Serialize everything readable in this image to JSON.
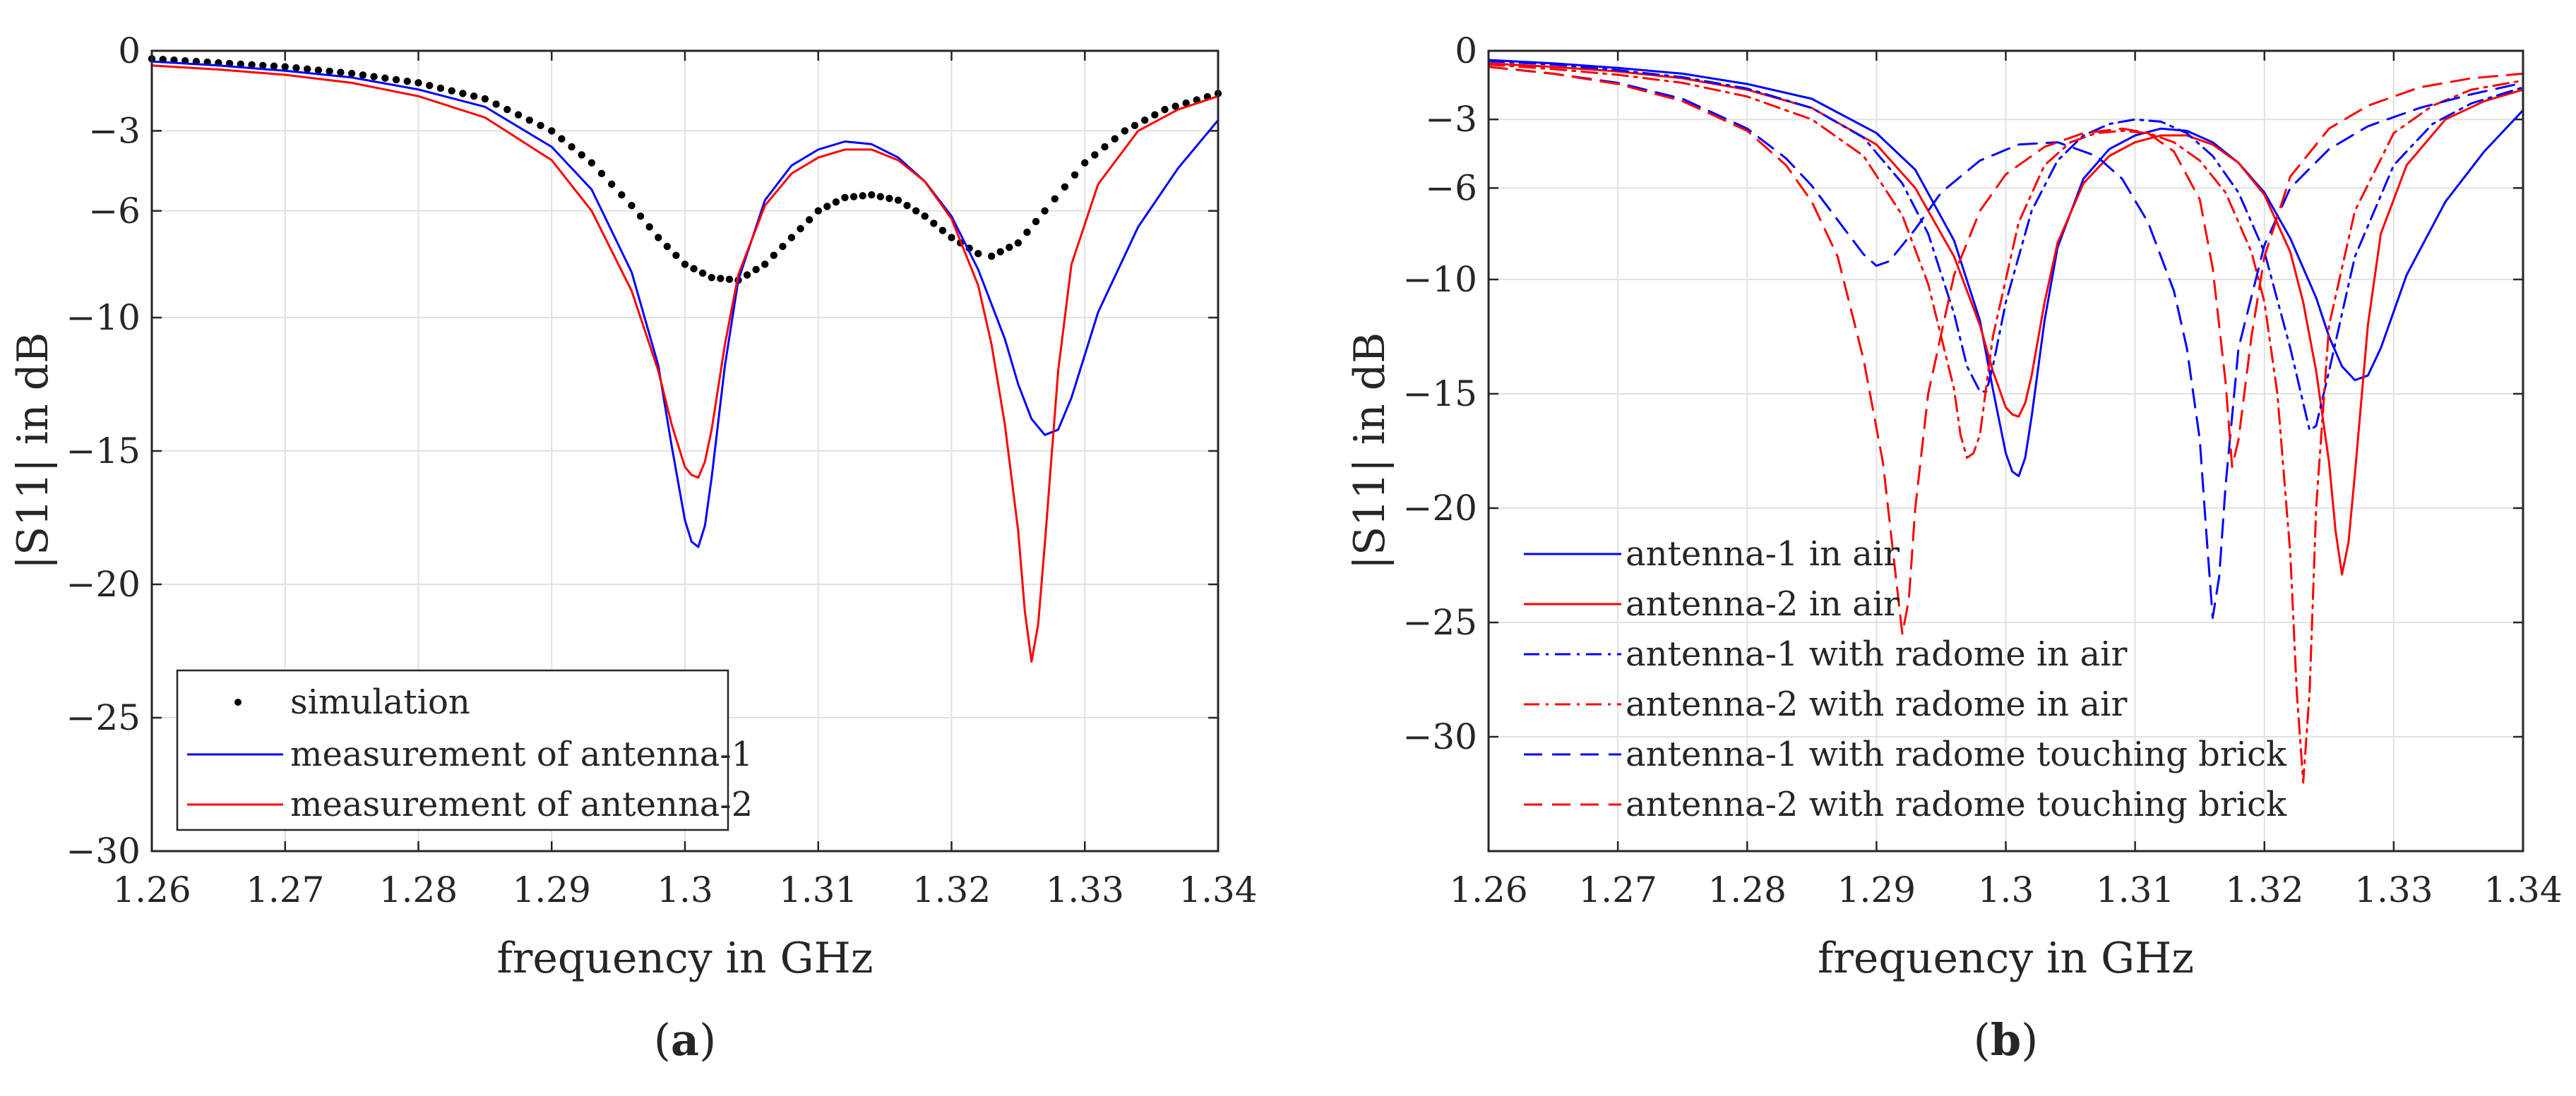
{
  "colors": {
    "blue": "#0000ff",
    "red": "#ff0000",
    "black": "#000000",
    "grid": "#e1e1e1",
    "axis": "#262626"
  },
  "chart_data": [
    {
      "type": "line",
      "caption_letter": "a",
      "xlabel": "frequency in GHz",
      "ylabel": "|S11| in dB",
      "xlim": [
        1.26,
        1.34
      ],
      "ylim": [
        -30,
        0
      ],
      "xticks": [
        1.26,
        1.27,
        1.28,
        1.29,
        1.3,
        1.31,
        1.32,
        1.33,
        1.34
      ],
      "xtick_labels": [
        "1.26",
        "1.27",
        "1.28",
        "1.29",
        "1.3",
        "1.31",
        "1.32",
        "1.33",
        "1.34"
      ],
      "yticks": [
        -30,
        -25,
        -20,
        -15,
        -10,
        -6,
        -3,
        0
      ],
      "ytick_labels": [
        "−30",
        "−25",
        "−20",
        "−15",
        "−10",
        "−6",
        "−3",
        "0"
      ],
      "grid": true,
      "legend_position": "bottom-left",
      "series": [
        {
          "name": "simulation",
          "style": "dots",
          "color": "#000000",
          "x": [
            1.26,
            1.265,
            1.27,
            1.275,
            1.28,
            1.285,
            1.29,
            1.293,
            1.296,
            1.298,
            1.3,
            1.302,
            1.304,
            1.306,
            1.308,
            1.31,
            1.312,
            1.314,
            1.316,
            1.318,
            1.32,
            1.322,
            1.323,
            1.325,
            1.327,
            1.33,
            1.333,
            1.336,
            1.34
          ],
          "y": [
            -0.3,
            -0.45,
            -0.6,
            -0.85,
            -1.2,
            -1.8,
            -3.0,
            -4.2,
            -5.8,
            -7.0,
            -8.0,
            -8.5,
            -8.6,
            -8.0,
            -7.0,
            -6.0,
            -5.5,
            -5.4,
            -5.6,
            -6.2,
            -7.0,
            -7.6,
            -7.7,
            -7.2,
            -6.0,
            -4.2,
            -3.0,
            -2.2,
            -1.6
          ]
        },
        {
          "name": "measurement of antenna-1",
          "style": "solid",
          "color": "#0000ff",
          "x": [
            1.26,
            1.265,
            1.27,
            1.275,
            1.28,
            1.285,
            1.29,
            1.293,
            1.296,
            1.298,
            1.299,
            1.3,
            1.3005,
            1.301,
            1.3015,
            1.302,
            1.303,
            1.304,
            1.306,
            1.308,
            1.31,
            1.312,
            1.314,
            1.316,
            1.318,
            1.32,
            1.322,
            1.324,
            1.325,
            1.326,
            1.327,
            1.328,
            1.329,
            1.331,
            1.334,
            1.337,
            1.34
          ],
          "y": [
            -0.4,
            -0.55,
            -0.75,
            -1.0,
            -1.45,
            -2.1,
            -3.6,
            -5.2,
            -8.3,
            -11.8,
            -14.8,
            -17.6,
            -18.4,
            -18.6,
            -17.8,
            -16.0,
            -11.8,
            -8.6,
            -5.6,
            -4.3,
            -3.7,
            -3.4,
            -3.5,
            -4.0,
            -4.9,
            -6.2,
            -8.2,
            -10.8,
            -12.5,
            -13.8,
            -14.4,
            -14.2,
            -13.0,
            -9.8,
            -6.6,
            -4.4,
            -2.6
          ]
        },
        {
          "name": "measurement of antenna-2",
          "style": "solid",
          "color": "#ff0000",
          "x": [
            1.26,
            1.265,
            1.27,
            1.275,
            1.28,
            1.285,
            1.29,
            1.293,
            1.296,
            1.298,
            1.299,
            1.3,
            1.3005,
            1.301,
            1.3015,
            1.302,
            1.303,
            1.304,
            1.306,
            1.308,
            1.31,
            1.312,
            1.314,
            1.316,
            1.318,
            1.32,
            1.322,
            1.323,
            1.324,
            1.325,
            1.3255,
            1.326,
            1.3265,
            1.327,
            1.328,
            1.329,
            1.331,
            1.334,
            1.337,
            1.34
          ],
          "y": [
            -0.55,
            -0.7,
            -0.9,
            -1.2,
            -1.7,
            -2.5,
            -4.1,
            -6.0,
            -9.0,
            -12.0,
            -14.0,
            -15.6,
            -15.9,
            -16.0,
            -15.4,
            -14.2,
            -11.0,
            -8.4,
            -5.8,
            -4.6,
            -4.0,
            -3.7,
            -3.7,
            -4.1,
            -4.9,
            -6.3,
            -8.8,
            -11.0,
            -14.0,
            -18.0,
            -21.0,
            -22.9,
            -21.5,
            -18.5,
            -12.0,
            -8.0,
            -5.0,
            -3.0,
            -2.2,
            -1.7
          ]
        }
      ]
    },
    {
      "type": "line",
      "caption_letter": "b",
      "xlabel": "frequency in GHz",
      "ylabel": "|S11| in dB",
      "xlim": [
        1.26,
        1.34
      ],
      "ylim": [
        -35,
        0
      ],
      "xticks": [
        1.26,
        1.27,
        1.28,
        1.29,
        1.3,
        1.31,
        1.32,
        1.33,
        1.34
      ],
      "xtick_labels": [
        "1.26",
        "1.27",
        "1.28",
        "1.29",
        "1.3",
        "1.31",
        "1.32",
        "1.33",
        "1.34"
      ],
      "yticks": [
        -30,
        -25,
        -20,
        -15,
        -10,
        -6,
        -3,
        0
      ],
      "ytick_labels": [
        "−30",
        "−25",
        "−20",
        "−15",
        "−10",
        "−6",
        "−3",
        "0"
      ],
      "grid": true,
      "legend_position": "bottom-left",
      "series": [
        {
          "name": "antenna-1 in air",
          "style": "solid",
          "color": "#0000ff",
          "x": [
            1.26,
            1.265,
            1.27,
            1.275,
            1.28,
            1.285,
            1.29,
            1.293,
            1.296,
            1.298,
            1.299,
            1.3,
            1.3005,
            1.301,
            1.3015,
            1.302,
            1.303,
            1.304,
            1.306,
            1.308,
            1.31,
            1.312,
            1.314,
            1.316,
            1.318,
            1.32,
            1.322,
            1.324,
            1.325,
            1.326,
            1.327,
            1.328,
            1.329,
            1.331,
            1.334,
            1.337,
            1.34
          ],
          "y": [
            -0.4,
            -0.55,
            -0.75,
            -1.0,
            -1.45,
            -2.1,
            -3.6,
            -5.2,
            -8.3,
            -11.8,
            -14.8,
            -17.6,
            -18.4,
            -18.6,
            -17.8,
            -16.0,
            -11.8,
            -8.6,
            -5.6,
            -4.3,
            -3.7,
            -3.4,
            -3.5,
            -4.0,
            -4.9,
            -6.2,
            -8.2,
            -10.8,
            -12.5,
            -13.8,
            -14.4,
            -14.2,
            -13.0,
            -9.8,
            -6.6,
            -4.4,
            -2.6
          ]
        },
        {
          "name": "antenna-2 in air",
          "style": "solid",
          "color": "#ff0000",
          "x": [
            1.26,
            1.265,
            1.27,
            1.275,
            1.28,
            1.285,
            1.29,
            1.293,
            1.296,
            1.298,
            1.299,
            1.3,
            1.3005,
            1.301,
            1.3015,
            1.302,
            1.303,
            1.304,
            1.306,
            1.308,
            1.31,
            1.312,
            1.314,
            1.316,
            1.318,
            1.32,
            1.322,
            1.323,
            1.324,
            1.325,
            1.3255,
            1.326,
            1.3265,
            1.327,
            1.328,
            1.329,
            1.331,
            1.334,
            1.337,
            1.34
          ],
          "y": [
            -0.55,
            -0.7,
            -0.9,
            -1.2,
            -1.7,
            -2.5,
            -4.1,
            -6.0,
            -9.0,
            -12.0,
            -14.0,
            -15.6,
            -15.9,
            -16.0,
            -15.4,
            -14.2,
            -11.0,
            -8.4,
            -5.8,
            -4.6,
            -4.0,
            -3.7,
            -3.7,
            -4.1,
            -4.9,
            -6.3,
            -8.8,
            -11.0,
            -14.0,
            -18.0,
            -21.0,
            -22.9,
            -21.5,
            -18.5,
            -12.0,
            -8.0,
            -5.0,
            -3.0,
            -2.2,
            -1.7
          ]
        },
        {
          "name": "antenna-1 with radome in air",
          "style": "dashdot",
          "color": "#0000ff",
          "x": [
            1.26,
            1.265,
            1.27,
            1.275,
            1.28,
            1.285,
            1.289,
            1.292,
            1.294,
            1.296,
            1.297,
            1.298,
            1.2985,
            1.299,
            1.3,
            1.302,
            1.304,
            1.306,
            1.308,
            1.31,
            1.312,
            1.314,
            1.316,
            1.318,
            1.32,
            1.322,
            1.3235,
            1.324,
            1.325,
            1.327,
            1.33,
            1.333,
            1.336,
            1.34
          ],
          "y": [
            -0.45,
            -0.6,
            -0.85,
            -1.15,
            -1.65,
            -2.5,
            -3.8,
            -5.8,
            -8.0,
            -11.5,
            -13.8,
            -14.9,
            -14.9,
            -13.8,
            -11.0,
            -7.0,
            -4.8,
            -3.7,
            -3.2,
            -3.0,
            -3.1,
            -3.6,
            -4.6,
            -6.2,
            -8.8,
            -13.0,
            -16.6,
            -16.4,
            -14.0,
            -9.0,
            -5.0,
            -3.2,
            -2.3,
            -1.6
          ]
        },
        {
          "name": "antenna-2 with radome in air",
          "style": "dashdot",
          "color": "#ff0000",
          "x": [
            1.26,
            1.265,
            1.27,
            1.275,
            1.28,
            1.285,
            1.289,
            1.292,
            1.294,
            1.296,
            1.2965,
            1.297,
            1.2975,
            1.298,
            1.299,
            1.301,
            1.303,
            1.305,
            1.307,
            1.309,
            1.311,
            1.313,
            1.315,
            1.317,
            1.319,
            1.32,
            1.321,
            1.322,
            1.3225,
            1.323,
            1.3235,
            1.324,
            1.325,
            1.327,
            1.33,
            1.333,
            1.336,
            1.34
          ],
          "y": [
            -0.6,
            -0.8,
            -1.05,
            -1.4,
            -2.0,
            -3.0,
            -4.6,
            -7.2,
            -10.2,
            -14.8,
            -16.8,
            -17.8,
            -17.6,
            -16.8,
            -12.5,
            -7.5,
            -5.0,
            -4.0,
            -3.6,
            -3.5,
            -3.6,
            -4.0,
            -4.8,
            -6.2,
            -8.8,
            -11.0,
            -15.0,
            -22.0,
            -28.0,
            -32.0,
            -28.0,
            -20.0,
            -12.0,
            -7.0,
            -3.6,
            -2.4,
            -1.7,
            -1.3
          ]
        },
        {
          "name": "antenna-1 with radome touching brick",
          "style": "dashed",
          "color": "#0000ff",
          "x": [
            1.26,
            1.265,
            1.27,
            1.275,
            1.28,
            1.283,
            1.285,
            1.287,
            1.289,
            1.29,
            1.291,
            1.293,
            1.295,
            1.298,
            1.301,
            1.304,
            1.307,
            1.309,
            1.311,
            1.313,
            1.314,
            1.315,
            1.3155,
            1.316,
            1.3165,
            1.317,
            1.318,
            1.32,
            1.322,
            1.325,
            1.328,
            1.332,
            1.336,
            1.34
          ],
          "y": [
            -0.7,
            -1.0,
            -1.4,
            -2.1,
            -3.4,
            -4.7,
            -5.9,
            -7.4,
            -8.9,
            -9.4,
            -9.2,
            -7.8,
            -6.2,
            -4.8,
            -4.1,
            -4.0,
            -4.6,
            -5.6,
            -7.5,
            -10.5,
            -13.0,
            -17.0,
            -21.0,
            -24.8,
            -23.0,
            -19.0,
            -13.0,
            -8.5,
            -6.0,
            -4.3,
            -3.3,
            -2.5,
            -1.9,
            -1.4
          ]
        },
        {
          "name": "antenna-2 with radome touching brick",
          "style": "dashed",
          "color": "#ff0000",
          "x": [
            1.26,
            1.265,
            1.27,
            1.275,
            1.28,
            1.283,
            1.285,
            1.287,
            1.289,
            1.2905,
            1.2915,
            1.292,
            1.2925,
            1.293,
            1.294,
            1.296,
            1.298,
            1.3,
            1.303,
            1.306,
            1.309,
            1.311,
            1.313,
            1.315,
            1.316,
            1.317,
            1.3175,
            1.318,
            1.319,
            1.32,
            1.322,
            1.325,
            1.328,
            1.332,
            1.336,
            1.34
          ],
          "y": [
            -0.7,
            -1.0,
            -1.45,
            -2.2,
            -3.5,
            -5.0,
            -6.6,
            -9.0,
            -13.5,
            -18.0,
            -23.0,
            -25.5,
            -24.0,
            -20.0,
            -15.0,
            -9.8,
            -7.0,
            -5.4,
            -4.2,
            -3.6,
            -3.4,
            -3.6,
            -4.4,
            -6.5,
            -9.5,
            -14.5,
            -18.2,
            -17.0,
            -12.5,
            -9.0,
            -5.5,
            -3.4,
            -2.4,
            -1.6,
            -1.2,
            -1.0
          ]
        }
      ]
    }
  ]
}
